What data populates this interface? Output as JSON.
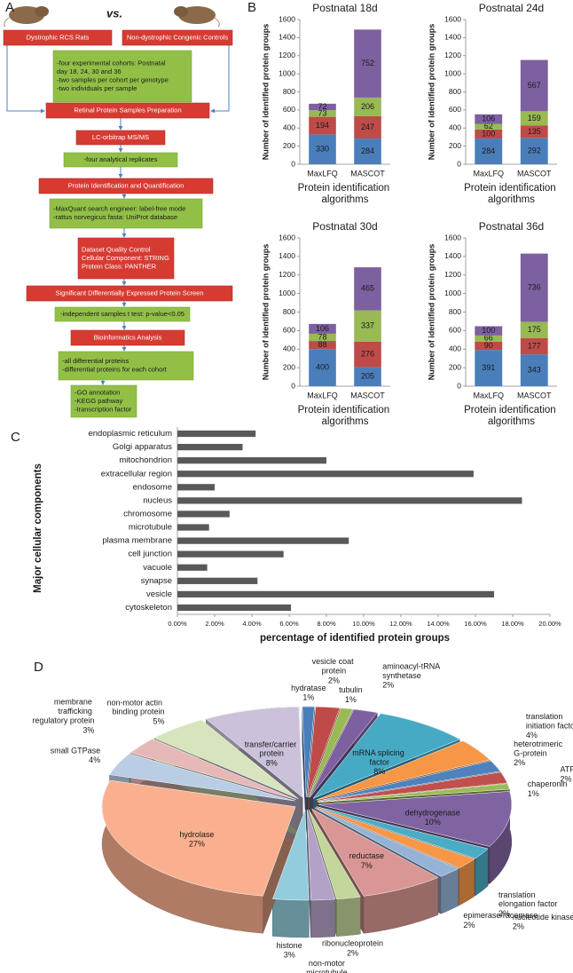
{
  "panel_labels": [
    "A",
    "B",
    "C",
    "D"
  ],
  "diagram": {
    "vs": "vs.",
    "nodes": [
      {
        "lines": [
          "Dystrophic RCS Rats"
        ]
      },
      {
        "lines": [
          "Non-dystrophic Congenic Controls"
        ]
      },
      {
        "lines": [
          "-four experimental cohorts: Postnatal",
          "day 18, 24, 30 and 36",
          "-two samples per cohort per genotype",
          "-two individuals per sample"
        ]
      },
      {
        "lines": [
          "Retinal Protein Samples Preparation"
        ]
      },
      {
        "lines": [
          "LC-orbitrap MS/MS"
        ]
      },
      {
        "lines": [
          "-four analytical replicates"
        ]
      },
      {
        "lines": [
          "Protein Identification and Quantification"
        ]
      },
      {
        "lines": [
          "-MaxQuant search engineer: label-free mode",
          "-rattus norvegicus fasta: UniProt database"
        ]
      },
      {
        "lines": [
          "Dataset Quality Control",
          "Cellular Component: STRING",
          "Protein Class: PANTHER"
        ]
      },
      {
        "lines": [
          "Significant Differentially Expressed Protein Screen"
        ]
      },
      {
        "lines": [
          "-independent samples t test: p-value<0.05"
        ]
      },
      {
        "lines": [
          "Bioinformatics Analysis"
        ]
      },
      {
        "lines": [
          "-all differential proteins",
          "-differential proteins for each cohort"
        ]
      },
      {
        "lines": [
          "-GO annotation",
          "-KEGG pathway",
          "-transcription factor"
        ]
      }
    ]
  },
  "chart_data": [
    {
      "type": "stacked_bar",
      "title": "Postnatal 18d",
      "ylabel": "Number of identified protein groups",
      "xlabel": "Protein identification algorithms",
      "categories": [
        "MaxLFQ",
        "MASCOT"
      ],
      "ylim": [
        0,
        1600
      ],
      "yticks": [
        0,
        200,
        400,
        600,
        800,
        1000,
        1200,
        1400,
        1600
      ],
      "series": [
        {
          "color": "#4a7ebb",
          "values": [
            330,
            284
          ]
        },
        {
          "color": "#be4b48",
          "values": [
            194,
            247
          ]
        },
        {
          "color": "#98b954",
          "values": [
            73,
            206
          ]
        },
        {
          "color": "#7d60a0",
          "values": [
            72,
            752
          ]
        }
      ]
    },
    {
      "type": "stacked_bar",
      "title": "Postnatal 24d",
      "ylabel": "Number of identified protein groups",
      "xlabel": "Protein identification algorithms",
      "categories": [
        "MaxLFQ",
        "MASCOT"
      ],
      "ylim": [
        0,
        1600
      ],
      "yticks": [
        0,
        200,
        400,
        600,
        800,
        1000,
        1200,
        1400,
        1600
      ],
      "series": [
        {
          "color": "#4a7ebb",
          "values": [
            284,
            292
          ]
        },
        {
          "color": "#be4b48",
          "values": [
            100,
            135
          ]
        },
        {
          "color": "#98b954",
          "values": [
            62,
            159
          ]
        },
        {
          "color": "#7d60a0",
          "values": [
            106,
            567
          ]
        }
      ]
    },
    {
      "type": "stacked_bar",
      "title": "Postnatal 30d",
      "ylabel": "Number of identified protein groups",
      "xlabel": "Protein identification algorithms",
      "categories": [
        "MaxLFQ",
        "MASCOT"
      ],
      "ylim": [
        0,
        1600
      ],
      "yticks": [
        0,
        200,
        400,
        600,
        800,
        1000,
        1200,
        1400,
        1600
      ],
      "series": [
        {
          "color": "#4a7ebb",
          "values": [
            400,
            205
          ]
        },
        {
          "color": "#be4b48",
          "values": [
            88,
            276
          ]
        },
        {
          "color": "#98b954",
          "values": [
            78,
            337
          ]
        },
        {
          "color": "#7d60a0",
          "values": [
            106,
            465
          ]
        }
      ]
    },
    {
      "type": "stacked_bar",
      "title": "Postnatal 36d",
      "ylabel": "Number of identified protein groups",
      "xlabel": "Protein identification algorithms",
      "categories": [
        "MaxLFQ",
        "MASCOT"
      ],
      "ylim": [
        0,
        1600
      ],
      "yticks": [
        0,
        200,
        400,
        600,
        800,
        1000,
        1200,
        1400,
        1600
      ],
      "series": [
        {
          "color": "#4a7ebb",
          "values": [
            391,
            343
          ]
        },
        {
          "color": "#be4b48",
          "values": [
            90,
            177
          ]
        },
        {
          "color": "#98b954",
          "values": [
            66,
            175
          ]
        },
        {
          "color": "#7d60a0",
          "values": [
            100,
            736
          ]
        }
      ]
    },
    {
      "type": "hbar",
      "ylabel": "Major cellular components",
      "xlabel": "percentage of identified protein groups",
      "color": "#595959",
      "categories": [
        "endoplasmic reticulum",
        "Golgi apparatus",
        "mitochondrion",
        "extracellular region",
        "endosome",
        "nucleus",
        "chromosome",
        "microtubule",
        "plasma membrane",
        "cell junction",
        "vacuole",
        "synapse",
        "vesicle",
        "cytoskeleton"
      ],
      "values": [
        4.2,
        3.5,
        8.0,
        15.9,
        2.0,
        18.5,
        2.8,
        1.7,
        9.2,
        5.7,
        1.6,
        4.3,
        17.0,
        6.1
      ],
      "xlim": [
        0,
        20
      ],
      "xticks": [
        {
          "value": 0,
          "label": "0.00%"
        },
        {
          "value": 2,
          "label": "2.00%"
        },
        {
          "value": 4,
          "label": "4.00%"
        },
        {
          "value": 6,
          "label": "6.00%"
        },
        {
          "value": 8,
          "label": "8.00%"
        },
        {
          "value": 10,
          "label": "10.00%"
        },
        {
          "value": 12,
          "label": "12.00%"
        },
        {
          "value": 14,
          "label": "14.00%"
        },
        {
          "value": 16,
          "label": "16.00%"
        },
        {
          "value": 18,
          "label": "18.00%"
        },
        {
          "value": 20,
          "label": "20.00%"
        }
      ]
    },
    {
      "type": "pie3d",
      "categories": [
        "hydratase",
        "vesicle coat protein",
        "tubulin",
        "aminoacyl-tRNA synthetase",
        "mRNA splicing factor",
        "translation initiation factor",
        "heterotrimeric G-protein",
        "ATP synthase",
        "chaperonin",
        "dehydrogenase",
        "translation elongation factor",
        "nucleotide kinase",
        "epimerase/racemase",
        "reductase",
        "ribonucleoprotein",
        "non-motor microtubule binding protein",
        "histone",
        "hydrolase",
        "small GTPase",
        "membrane trafficking regulatory protein",
        "non-motor actin binding protein",
        "transfer/carrier protein"
      ],
      "values": [
        1,
        2,
        1,
        2,
        8,
        4,
        2,
        2,
        1,
        10,
        2,
        2,
        2,
        7,
        2,
        2,
        3,
        27,
        4,
        3,
        5,
        8
      ],
      "value_labels": [
        "1%",
        "2%",
        "1%",
        "2%",
        "8%",
        "4%",
        "2%",
        "2%",
        "1%",
        "10%",
        "2%",
        "2%",
        "2%",
        "7%",
        "2%",
        null,
        "3%",
        "27%",
        "4%",
        "3%",
        "5%",
        "8%"
      ],
      "colors": [
        "#4a7ebb",
        "#be4b48",
        "#98b954",
        "#7d60a0",
        "#46aac5",
        "#f79646",
        "#4f81bd",
        "#c0504d",
        "#9bbb59",
        "#8064a2",
        "#4bacc6",
        "#f79646",
        "#95b3d7",
        "#d99694",
        "#c3d69b",
        "#b3a2c7",
        "#93cddd",
        "#fab08f",
        "#b9cde5",
        "#e6b9b8",
        "#d7e4bd",
        "#ccc1da"
      ]
    }
  ]
}
